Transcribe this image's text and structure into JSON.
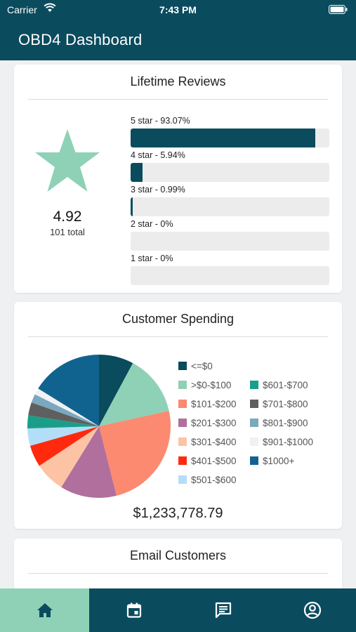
{
  "status_bar": {
    "carrier": "Carrier",
    "time": "7:43 PM",
    "icons": [
      "wifi-icon",
      "battery-icon"
    ]
  },
  "header": {
    "title": "OBD4 Dashboard"
  },
  "reviews": {
    "title": "Lifetime Reviews",
    "rating": "4.92",
    "total": "101 total",
    "star_color": "#8ed1b6",
    "bars": [
      {
        "label": "5 star - 93.07%",
        "percent": 93.07
      },
      {
        "label": "4 star - 5.94%",
        "percent": 5.94
      },
      {
        "label": "3 star - 0.99%",
        "percent": 0.99
      },
      {
        "label": "2 star - 0%",
        "percent": 0
      },
      {
        "label": "1 star - 0%",
        "percent": 0
      }
    ]
  },
  "spending": {
    "title": "Customer Spending",
    "total": "$1,233,778.79",
    "chart_data": {
      "type": "pie",
      "slices": [
        {
          "label": "<=$0",
          "value": 8,
          "color": "#0b4b5e"
        },
        {
          "label": ">$0-$100",
          "value": 14,
          "color": "#8ed1b6"
        },
        {
          "label": "$101-$200",
          "value": 25,
          "color": "#fb8a70"
        },
        {
          "label": "$201-$300",
          "value": 13,
          "color": "#b06f9c"
        },
        {
          "label": "$301-$400",
          "value": 7,
          "color": "#fcc4a4"
        },
        {
          "label": "$401-$500",
          "value": 5,
          "color": "#ff2a0e"
        },
        {
          "label": "$501-$600",
          "value": 4,
          "color": "#b3def7"
        },
        {
          "label": "$601-$700",
          "value": 3,
          "color": "#1a9e8a"
        },
        {
          "label": "$701-$800",
          "value": 3,
          "color": "#5f5f5f"
        },
        {
          "label": "$801-$900",
          "value": 2,
          "color": "#7aa8be"
        },
        {
          "label": "$901-$1000",
          "value": 1.5,
          "color": "#f1f1f5"
        },
        {
          "label": "$1000+",
          "value": 16.5,
          "color": "#11638f"
        }
      ]
    }
  },
  "email": {
    "title": "Email Customers"
  },
  "tabs": [
    {
      "name": "home",
      "icon": "home-icon",
      "active": true
    },
    {
      "name": "calendar",
      "icon": "calendar-icon",
      "active": false
    },
    {
      "name": "messages",
      "icon": "chat-icon",
      "active": false
    },
    {
      "name": "account",
      "icon": "account-icon",
      "active": false
    }
  ]
}
